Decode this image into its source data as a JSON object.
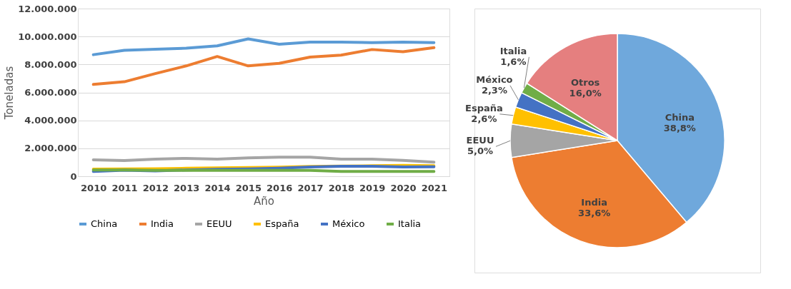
{
  "chart_data": [
    {
      "type": "line",
      "xlabel": "Año",
      "ylabel": "Toneladas",
      "categories": [
        "2010",
        "2011",
        "2012",
        "2013",
        "2014",
        "2015",
        "2016",
        "2017",
        "2018",
        "2019",
        "2020",
        "2021"
      ],
      "ylim": [
        0,
        12000000
      ],
      "yticks": [
        {
          "value": 0,
          "label": "0"
        },
        {
          "value": 2000000,
          "label": "2.000.000"
        },
        {
          "value": 4000000,
          "label": "4.000.000"
        },
        {
          "value": 6000000,
          "label": "6.000.000"
        },
        {
          "value": 8000000,
          "label": "8.000.000"
        },
        {
          "value": 10000000,
          "label": "10.000.000"
        },
        {
          "value": 12000000,
          "label": "12.000.000"
        }
      ],
      "grid": "y",
      "legend": "bottom",
      "series": [
        {
          "name": "China",
          "color": "#5b9bd5",
          "values": [
            8700000,
            9010000,
            9090000,
            9160000,
            9330000,
            9830000,
            9450000,
            9600000,
            9600000,
            9560000,
            9600000,
            9560000
          ]
        },
        {
          "name": "India",
          "color": "#ed7d31",
          "values": [
            6570000,
            6760000,
            7350000,
            7900000,
            8570000,
            7900000,
            8080000,
            8530000,
            8670000,
            9070000,
            8910000,
            9200000
          ]
        },
        {
          "name": "EEUU",
          "color": "#a5a5a5",
          "values": [
            1180000,
            1120000,
            1220000,
            1280000,
            1220000,
            1310000,
            1370000,
            1370000,
            1220000,
            1220000,
            1140000,
            1010000
          ]
        },
        {
          "name": "España",
          "color": "#ffc000",
          "values": [
            510000,
            520000,
            530000,
            570000,
            600000,
            620000,
            650000,
            700000,
            730000,
            750000,
            780000,
            750000
          ]
        },
        {
          "name": "México",
          "color": "#4472c4",
          "values": [
            350000,
            430000,
            380000,
            450000,
            500000,
            520000,
            580000,
            670000,
            720000,
            720000,
            670000,
            680000
          ]
        },
        {
          "name": "Italia",
          "color": "#70ad47",
          "values": [
            450000,
            450000,
            420000,
            420000,
            420000,
            420000,
            420000,
            420000,
            350000,
            350000,
            350000,
            350000
          ]
        }
      ]
    },
    {
      "type": "pie",
      "categories": [
        "China",
        "India",
        "EEUU",
        "España",
        "México",
        "Italia",
        "Otros"
      ],
      "values": [
        38.8,
        33.6,
        5.0,
        2.6,
        2.3,
        1.6,
        16.0
      ],
      "value_labels": [
        "38,8%",
        "33,6%",
        "5,0%",
        "2,6%",
        "2,3%",
        "1,6%",
        "16,0%"
      ],
      "colors": [
        "#6fa8dc",
        "#ed7d31",
        "#a5a5a5",
        "#ffc000",
        "#4472c4",
        "#70ad47",
        "#e57f7f"
      ]
    }
  ]
}
